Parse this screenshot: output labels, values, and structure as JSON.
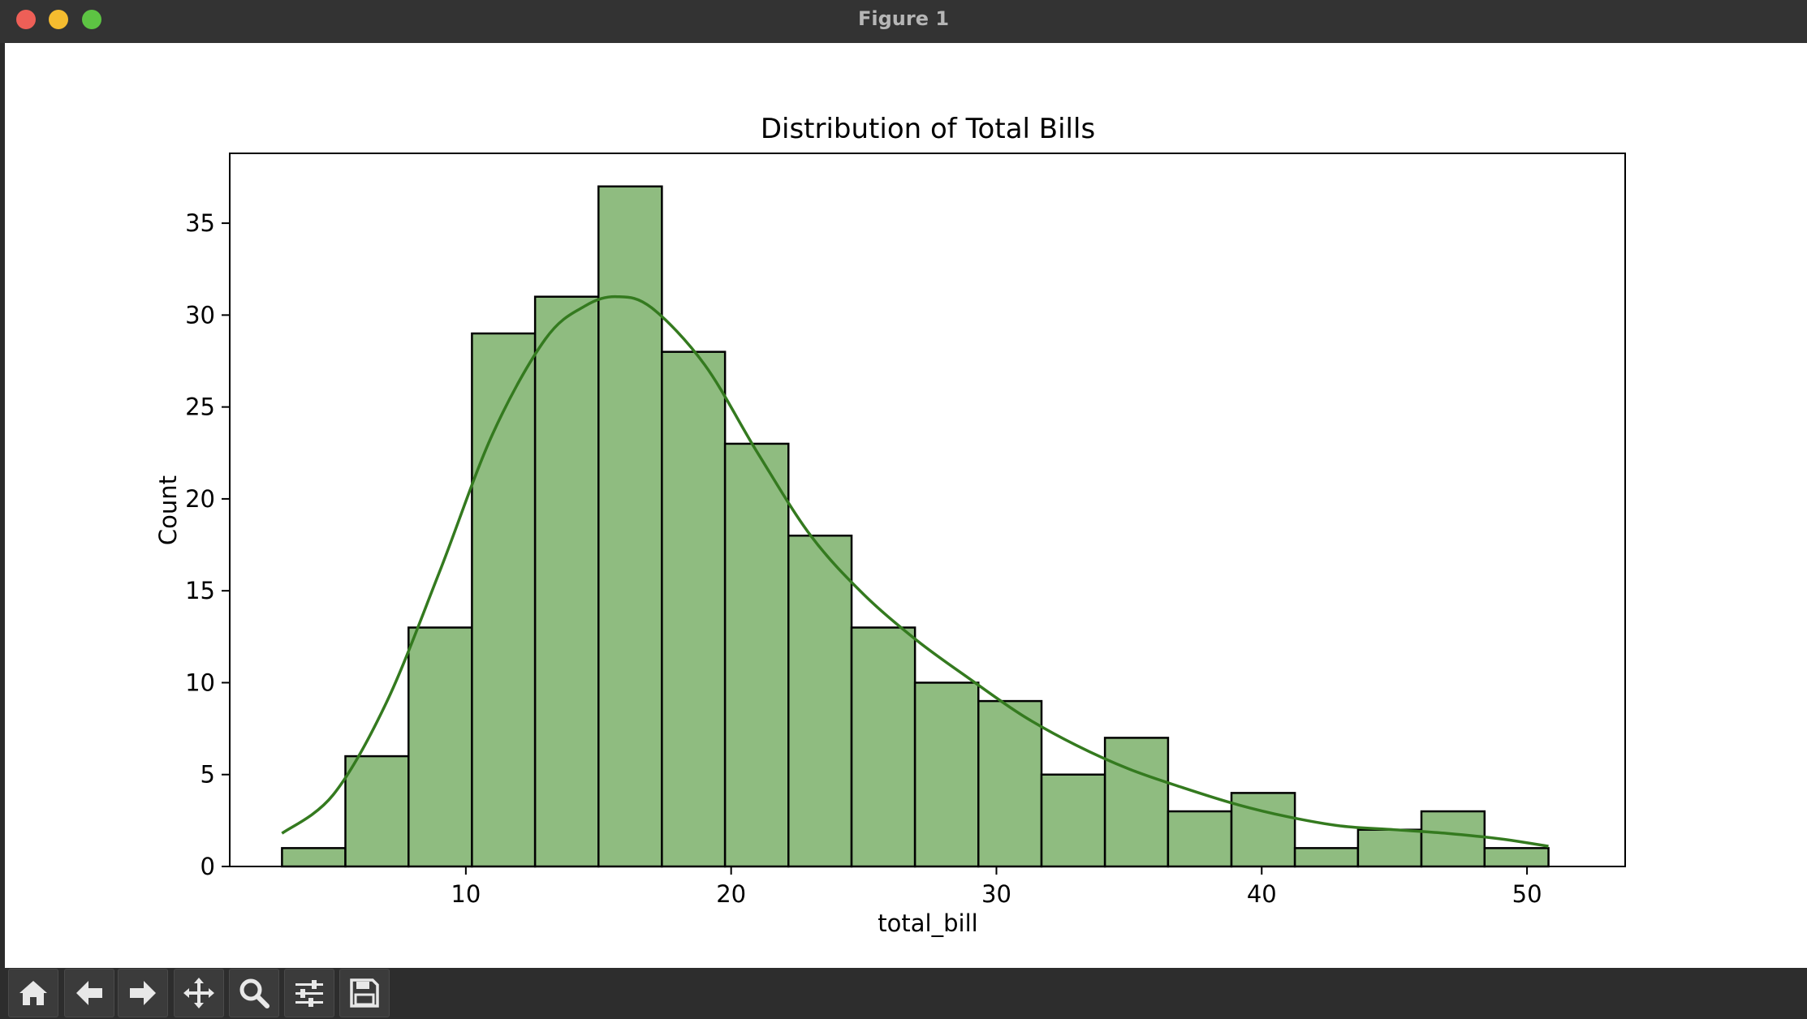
{
  "window": {
    "title": "Figure 1"
  },
  "toolbar": {
    "buttons": [
      {
        "name": "home",
        "icon": "home-icon"
      },
      {
        "name": "back",
        "icon": "arrow-left-icon"
      },
      {
        "name": "forward",
        "icon": "arrow-right-icon"
      },
      {
        "name": "pan",
        "icon": "move-icon"
      },
      {
        "name": "zoom",
        "icon": "magnifier-icon"
      },
      {
        "name": "configure-subplots",
        "icon": "sliders-icon"
      },
      {
        "name": "save",
        "icon": "floppy-disk-icon"
      }
    ]
  },
  "colors": {
    "bar_fill": "#8fbc80",
    "bar_edge": "#000000",
    "kde_line": "#347a1f"
  },
  "chart_data": {
    "type": "bar",
    "subtype": "histogram",
    "title": "Distribution of Total Bills",
    "xlabel": "total_bill",
    "ylabel": "Count",
    "xlim": [
      1.1,
      53.7
    ],
    "ylim": [
      0,
      38.8
    ],
    "xticks": [
      10,
      20,
      30,
      40,
      50
    ],
    "yticks": [
      0,
      5,
      10,
      15,
      20,
      25,
      30,
      35
    ],
    "grid": false,
    "bin_edges": [
      3.07,
      5.46,
      7.84,
      10.23,
      12.61,
      15.0,
      17.39,
      19.77,
      22.16,
      24.54,
      26.93,
      29.32,
      31.7,
      34.09,
      36.47,
      38.86,
      41.25,
      43.63,
      46.02,
      48.4,
      50.81
    ],
    "counts": [
      1,
      6,
      13,
      29,
      31,
      37,
      28,
      23,
      18,
      13,
      10,
      9,
      5,
      7,
      3,
      4,
      1,
      2,
      3,
      1
    ],
    "kde": {
      "label": "",
      "x": [
        3.07,
        5.0,
        7.0,
        9.0,
        11.0,
        13.0,
        14.5,
        15.7,
        17.0,
        19.0,
        21.0,
        23.0,
        25.0,
        27.0,
        29.0,
        31.0,
        33.0,
        35.0,
        37.0,
        39.0,
        41.0,
        43.0,
        45.0,
        47.0,
        49.0,
        50.81
      ],
      "y": [
        1.8,
        3.9,
        8.9,
        16.0,
        23.5,
        28.7,
        30.5,
        31.0,
        30.4,
        27.3,
        22.5,
        18.0,
        14.8,
        12.3,
        10.2,
        8.2,
        6.6,
        5.3,
        4.3,
        3.4,
        2.7,
        2.2,
        2.0,
        1.8,
        1.5,
        1.1
      ]
    }
  }
}
